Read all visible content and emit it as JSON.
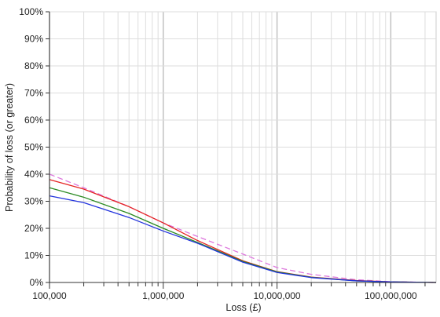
{
  "chart_data": {
    "type": "line",
    "title": "",
    "xlabel": "Loss (£)",
    "ylabel": "Probability of loss (or greater)",
    "x_scale": "log",
    "xlim": [
      100000,
      250000000
    ],
    "ylim": [
      0,
      100
    ],
    "grid": true,
    "x_tick_labels": [
      {
        "value": 100000,
        "label": "100,000"
      },
      {
        "value": 1000000,
        "label": "1,000,000"
      },
      {
        "value": 10000000,
        "label": "10,000,000"
      },
      {
        "value": 100000000,
        "label": "100,000,000"
      }
    ],
    "y_tick_labels": [
      {
        "value": 0,
        "label": "0%"
      },
      {
        "value": 10,
        "label": "10%"
      },
      {
        "value": 20,
        "label": "20%"
      },
      {
        "value": 30,
        "label": "30%"
      },
      {
        "value": 40,
        "label": "40%"
      },
      {
        "value": 50,
        "label": "50%"
      },
      {
        "value": 60,
        "label": "60%"
      },
      {
        "value": 70,
        "label": "70%"
      },
      {
        "value": 80,
        "label": "80%"
      },
      {
        "value": 90,
        "label": "90%"
      },
      {
        "value": 100,
        "label": "100%"
      }
    ],
    "series": [
      {
        "color": "#dd77dd",
        "dashed": true,
        "points": [
          [
            100000,
            40
          ],
          [
            200000,
            35
          ],
          [
            500000,
            28
          ],
          [
            1000000,
            22
          ],
          [
            2000000,
            17
          ],
          [
            5000000,
            10.5
          ],
          [
            10000000,
            5.5
          ],
          [
            20000000,
            3
          ],
          [
            50000000,
            1
          ],
          [
            100000000,
            0.3
          ],
          [
            250000000,
            0
          ]
        ]
      },
      {
        "color": "#e52222",
        "dashed": false,
        "points": [
          [
            100000,
            38
          ],
          [
            200000,
            34.5
          ],
          [
            500000,
            28
          ],
          [
            1000000,
            22
          ],
          [
            2000000,
            15.5
          ],
          [
            5000000,
            8
          ],
          [
            10000000,
            4
          ],
          [
            20000000,
            2
          ],
          [
            50000000,
            0.7
          ],
          [
            100000000,
            0.2
          ],
          [
            250000000,
            0
          ]
        ]
      },
      {
        "color": "#2a8a22",
        "dashed": false,
        "points": [
          [
            100000,
            35
          ],
          [
            200000,
            31.5
          ],
          [
            500000,
            25.5
          ],
          [
            1000000,
            20
          ],
          [
            2000000,
            14.8
          ],
          [
            5000000,
            7.8
          ],
          [
            10000000,
            3.9
          ],
          [
            20000000,
            1.9
          ],
          [
            50000000,
            0.6
          ],
          [
            100000000,
            0.2
          ],
          [
            250000000,
            0
          ]
        ]
      },
      {
        "color": "#2233dd",
        "dashed": false,
        "points": [
          [
            100000,
            32
          ],
          [
            200000,
            29.5
          ],
          [
            500000,
            24
          ],
          [
            1000000,
            19
          ],
          [
            2000000,
            14.5
          ],
          [
            5000000,
            7.5
          ],
          [
            10000000,
            3.7
          ],
          [
            20000000,
            1.8
          ],
          [
            50000000,
            0.6
          ],
          [
            100000000,
            0.2
          ],
          [
            250000000,
            0
          ]
        ]
      }
    ]
  }
}
